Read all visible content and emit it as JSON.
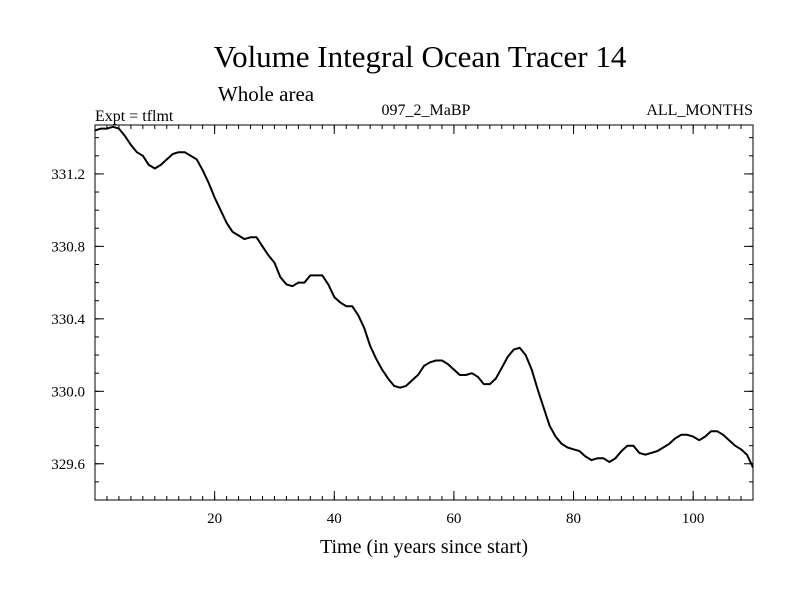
{
  "chart_data": {
    "type": "line",
    "title": "Volume Integral Ocean Tracer 14",
    "subtitle": "Whole area",
    "experiment_label": "Expt = tflmt",
    "run_label": "097_2_MaBP",
    "period_label": "ALL_MONTHS",
    "xlabel": "Time (in years since start)",
    "ylabel": "",
    "xlim": [
      0,
      110
    ],
    "ylim": [
      329.4,
      331.47
    ],
    "x_ticks": [
      20,
      40,
      60,
      80,
      100
    ],
    "x_tick_labels": [
      "20",
      "40",
      "60",
      "80",
      "100"
    ],
    "y_ticks": [
      329.6,
      330.0,
      330.4,
      330.8,
      331.2
    ],
    "y_tick_labels": [
      "329.6",
      "330.0",
      "330.4",
      "330.8",
      "331.2"
    ],
    "x_minor_step": 2,
    "y_minor_step": 0.1,
    "grid": false,
    "series": [
      {
        "name": "Volume Integral Ocean Tracer 14",
        "x": [
          0,
          1,
          2,
          3,
          4,
          5,
          6,
          7,
          8,
          9,
          10,
          11,
          12,
          13,
          14,
          15,
          16,
          17,
          18,
          19,
          20,
          21,
          22,
          23,
          24,
          25,
          26,
          27,
          28,
          29,
          30,
          31,
          32,
          33,
          34,
          35,
          36,
          37,
          38,
          39,
          40,
          41,
          42,
          43,
          44,
          45,
          46,
          47,
          48,
          49,
          50,
          51,
          52,
          53,
          54,
          55,
          56,
          57,
          58,
          59,
          60,
          61,
          62,
          63,
          64,
          65,
          66,
          67,
          68,
          69,
          70,
          71,
          72,
          73,
          74,
          75,
          76,
          77,
          78,
          79,
          80,
          81,
          82,
          83,
          84,
          85,
          86,
          87,
          88,
          89,
          90,
          91,
          92,
          93,
          94,
          95,
          96,
          97,
          98,
          99,
          100,
          101,
          102,
          103,
          104,
          105,
          106,
          107,
          108,
          109,
          110
        ],
        "y": [
          331.44,
          331.45,
          331.45,
          331.46,
          331.45,
          331.41,
          331.36,
          331.32,
          331.3,
          331.25,
          331.23,
          331.25,
          331.28,
          331.31,
          331.32,
          331.32,
          331.3,
          331.28,
          331.22,
          331.15,
          331.07,
          331.0,
          330.93,
          330.88,
          330.86,
          330.84,
          330.85,
          330.85,
          330.8,
          330.75,
          330.71,
          330.63,
          330.59,
          330.58,
          330.6,
          330.6,
          330.64,
          330.64,
          330.64,
          330.59,
          330.52,
          330.49,
          330.47,
          330.47,
          330.42,
          330.35,
          330.25,
          330.18,
          330.12,
          330.07,
          330.03,
          330.02,
          330.03,
          330.06,
          330.09,
          330.14,
          330.16,
          330.17,
          330.17,
          330.15,
          330.12,
          330.09,
          330.09,
          330.1,
          330.08,
          330.04,
          330.04,
          330.07,
          330.13,
          330.19,
          330.23,
          330.24,
          330.2,
          330.12,
          330.01,
          329.91,
          329.81,
          329.75,
          329.71,
          329.69,
          329.68,
          329.67,
          329.64,
          329.62,
          329.63,
          329.63,
          329.61,
          329.63,
          329.67,
          329.7,
          329.7,
          329.66,
          329.65,
          329.66,
          329.67,
          329.69,
          329.71,
          329.74,
          329.76,
          329.76,
          329.75,
          329.73,
          329.75,
          329.78,
          329.78,
          329.76,
          329.73,
          329.7,
          329.68,
          329.65,
          329.58
        ]
      }
    ]
  }
}
